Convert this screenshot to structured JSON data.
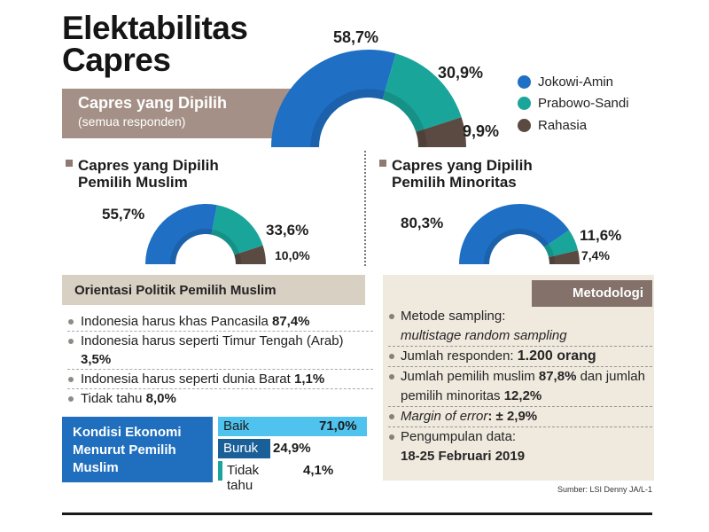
{
  "header": {
    "title_line1": "Elektabilitas",
    "title_line2": "Capres",
    "section_title": "Capres yang Dipilih",
    "section_subtitle": "(semua responden)"
  },
  "legend": [
    {
      "label": "Jokowi-Amin",
      "color": "#1f6fc4"
    },
    {
      "label": "Prabowo-Sandi",
      "color": "#1aa59a"
    },
    {
      "label": "Rahasia",
      "color": "#5a4a42"
    }
  ],
  "chart_data": [
    {
      "type": "pie",
      "title": "Capres yang Dipilih (semua responden)",
      "categories": [
        "Jokowi-Amin",
        "Prabowo-Sandi",
        "Rahasia"
      ],
      "values": [
        58.7,
        30.9,
        9.9
      ],
      "labels": [
        "58,7%",
        "30,9%",
        "9,9%"
      ]
    },
    {
      "type": "pie",
      "title": "Capres yang Dipilih Pemilih Muslim",
      "categories": [
        "Jokowi-Amin",
        "Prabowo-Sandi",
        "Rahasia"
      ],
      "values": [
        55.7,
        33.6,
        10.0
      ],
      "labels": [
        "55,7%",
        "33,6%",
        "10,0%"
      ]
    },
    {
      "type": "pie",
      "title": "Capres yang Dipilih Pemilih Minoritas",
      "categories": [
        "Jokowi-Amin",
        "Prabowo-Sandi",
        "Rahasia"
      ],
      "values": [
        80.3,
        11.6,
        7.4
      ],
      "labels": [
        "80,3%",
        "11,6%",
        "7,4%"
      ]
    },
    {
      "type": "bar",
      "title": "Kondisi Ekonomi Menurut Pemilih Muslim",
      "categories": [
        "Baik",
        "Buruk",
        "Tidak tahu"
      ],
      "values": [
        71.0,
        24.9,
        4.1
      ],
      "labels": [
        "71,0%",
        "24,9%",
        "4,1%"
      ],
      "colors": [
        "#4fc3ee",
        "#1b5f99",
        "#1aa59a"
      ]
    }
  ],
  "muslim": {
    "title_line1": "Capres yang Dipilih",
    "title_line2": "Pemilih Muslim"
  },
  "minoritas": {
    "title_line1": "Capres yang Dipilih",
    "title_line2": "Pemilih Minoritas"
  },
  "orientasi": {
    "title": "Orientasi Politik Pemilih Muslim",
    "items": [
      {
        "text": "Indonesia harus khas Pancasila ",
        "value": "87,4%"
      },
      {
        "text": "Indonesia harus seperti Timur Tengah (Arab) ",
        "value": "3,5%"
      },
      {
        "text": "Indonesia harus seperti dunia Barat ",
        "value": "1,1%"
      },
      {
        "text": "Tidak tahu ",
        "value": "8,0%"
      }
    ]
  },
  "ekonomi": {
    "title": "Kondisi Ekonomi Menurut Pemilih Muslim"
  },
  "metodologi": {
    "title": "Metodologi",
    "sampling_label": "Metode sampling:",
    "sampling_value": "multistage random sampling",
    "responden_label": "Jumlah responden: ",
    "responden_value": "1.200 orang",
    "pemilih_label1": "Jumlah pemilih muslim ",
    "pemilih_value1": "87,8%",
    "pemilih_label2": " dan jumlah pemilih minoritas ",
    "pemilih_value2": "12,2%",
    "moe_label": "Margin of error",
    "moe_value": ": ± 2,9%",
    "pengumpulan_label": "Pengumpulan data:",
    "pengumpulan_value": "18-25 Februari 2019"
  },
  "source": "Sumber: LSI Denny JA/L-1"
}
